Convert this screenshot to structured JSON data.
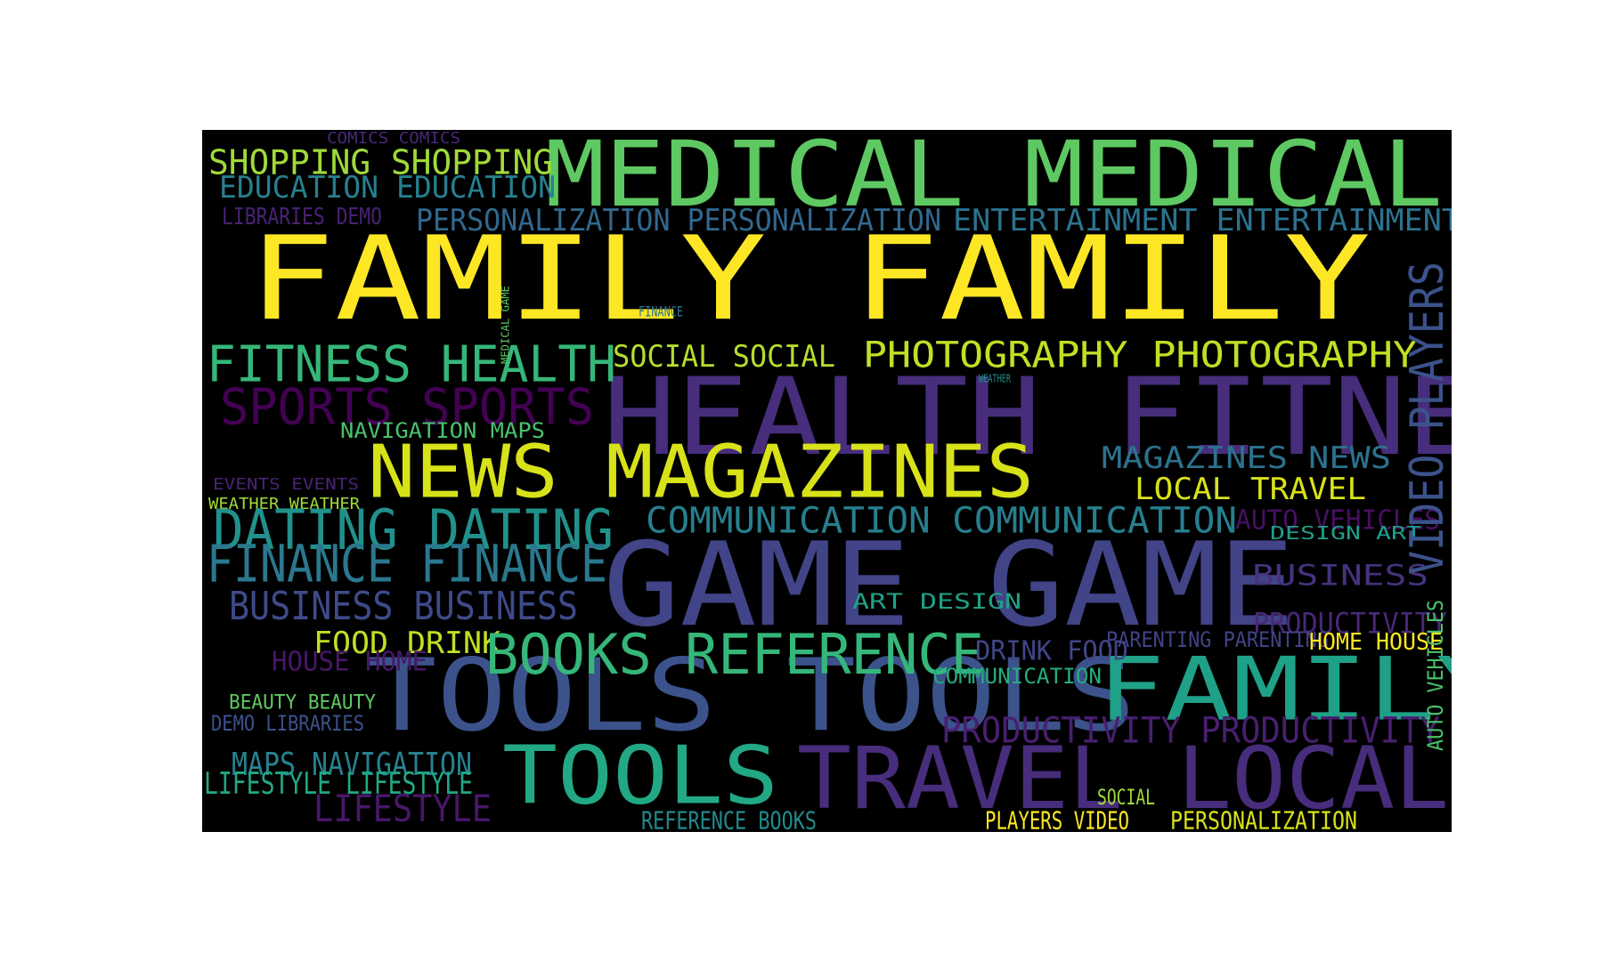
{
  "palette": {
    "yellow": "#fde725",
    "lime": "#a0da39",
    "light_green": "#4ac16d",
    "green": "#5ec962",
    "teal_green": "#22a884",
    "teal": "#1fa187",
    "teal_blue": "#277f8e",
    "blue": "#2c728e",
    "indigo": "#3b528b",
    "deep_indigo": "#414487",
    "purple": "#472d7b",
    "dark_purple": "#440154"
  },
  "words": [
    {
      "text": "FAMILY FAMILY",
      "color": "#fde725"
    },
    {
      "text": "MEDICAL MEDICAL",
      "color": "#5ec962"
    },
    {
      "text": "HEALTH FITNESS",
      "color": "#472d7b"
    },
    {
      "text": "GAME GAME",
      "color": "#414487"
    },
    {
      "text": "NEWS MAGAZINES",
      "color": "#d8e219"
    },
    {
      "text": "TOOLS TOOLS",
      "color": "#3b528b"
    },
    {
      "text": "TOOLS",
      "color": "#22a884"
    },
    {
      "text": "TRAVEL LOCAL",
      "color": "#472d7b"
    },
    {
      "text": "FAMILY",
      "color": "#1fa187"
    },
    {
      "text": "SHOPPING SHOPPING",
      "color": "#a0da39"
    },
    {
      "text": "EDUCATION EDUCATION",
      "color": "#277f8e"
    },
    {
      "text": "COMICS COMICS",
      "color": "#482878"
    },
    {
      "text": "LIBRARIES DEMO",
      "color": "#482173"
    },
    {
      "text": "PERSONALIZATION PERSONALIZATION",
      "color": "#31688e"
    },
    {
      "text": "ENTERTAINMENT ENTERTAINMENT",
      "color": "#2c728e"
    },
    {
      "text": "FITNESS HEALTH",
      "color": "#35b779"
    },
    {
      "text": "SOCIAL SOCIAL",
      "color": "#b5de2b"
    },
    {
      "text": "PHOTOGRAPHY PHOTOGRAPHY",
      "color": "#c2df23"
    },
    {
      "text": "SPORTS SPORTS",
      "color": "#440154"
    },
    {
      "text": "NAVIGATION MAPS",
      "color": "#4ac16d"
    },
    {
      "text": "MAGAZINES NEWS",
      "color": "#2c728e"
    },
    {
      "text": "LOCAL TRAVEL",
      "color": "#d8e219"
    },
    {
      "text": "EVENTS EVENTS",
      "color": "#482475"
    },
    {
      "text": "WEATHER WEATHER",
      "color": "#a0da39"
    },
    {
      "text": "DATING DATING",
      "color": "#21918c"
    },
    {
      "text": "COMMUNICATION COMMUNICATION",
      "color": "#277f8e"
    },
    {
      "text": "AUTO VEHICLES",
      "color": "#471063"
    },
    {
      "text": "DESIGN ART",
      "color": "#1f9e89"
    },
    {
      "text": "FINANCE FINANCE",
      "color": "#2a788e"
    },
    {
      "text": "BUSINESS BUSINESS",
      "color": "#3e4a89"
    },
    {
      "text": "BUSINESS",
      "color": "#46327e"
    },
    {
      "text": "ART DESIGN",
      "color": "#1fa187"
    },
    {
      "text": "PRODUCTIVITY",
      "color": "#482878"
    },
    {
      "text": "FOOD DRINK",
      "color": "#c2df23"
    },
    {
      "text": "BOOKS REFERENCE",
      "color": "#35b779"
    },
    {
      "text": "DRINK FOOD",
      "color": "#404688"
    },
    {
      "text": "PARENTING PARENTING",
      "color": "#414487"
    },
    {
      "text": "HOME HOUSE",
      "color": "#fde725"
    },
    {
      "text": "HOUSE HOME",
      "color": "#481769"
    },
    {
      "text": "COMMUNICATION",
      "color": "#25ab82"
    },
    {
      "text": "BEAUTY BEAUTY",
      "color": "#5ec962"
    },
    {
      "text": "DEMO LIBRARIES",
      "color": "#3b528b"
    },
    {
      "text": "PRODUCTIVITY PRODUCTIVITY",
      "color": "#481f70"
    },
    {
      "text": "MAPS NAVIGATION",
      "color": "#26828e"
    },
    {
      "text": "LIFESTYLE LIFESTYLE",
      "color": "#22a884"
    },
    {
      "text": "LIFESTYLE",
      "color": "#481769"
    },
    {
      "text": "REFERENCE BOOKS",
      "color": "#238a8d"
    },
    {
      "text": "SOCIAL",
      "color": "#a0da39"
    },
    {
      "text": "PLAYERS VIDEO",
      "color": "#fde725"
    },
    {
      "text": "PERSONALIZATION",
      "color": "#d8e219"
    },
    {
      "text": "VIDEO PLAYERS",
      "color": "#3b528b"
    },
    {
      "text": "AUTO VEHICLES",
      "color": "#4ac16d"
    },
    {
      "text": "FINANCE",
      "color": "#2c728e"
    },
    {
      "text": "MEDICAL GAME",
      "color": "#5ec962"
    },
    {
      "text": "WEATHER",
      "color": "#21918c"
    }
  ]
}
